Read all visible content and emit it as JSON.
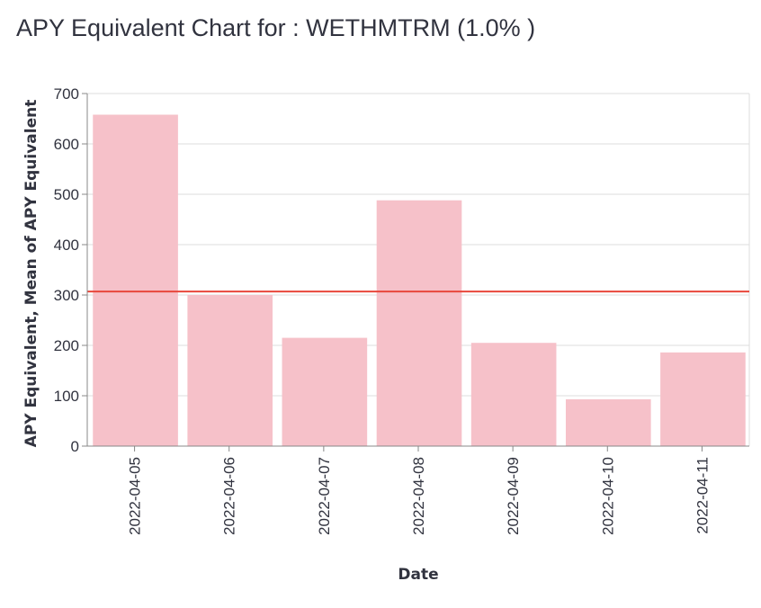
{
  "chart_data": {
    "type": "bar",
    "title": "APY Equivalent Chart for : WETHMTRM (1.0% )",
    "xlabel": "Date",
    "ylabel": "APY Equivalent, Mean of APY Equivalent",
    "categories": [
      "2022-04-05",
      "2022-04-06",
      "2022-04-07",
      "2022-04-08",
      "2022-04-09",
      "2022-04-10",
      "2022-04-11"
    ],
    "values": [
      658,
      300,
      215,
      488,
      205,
      93,
      186
    ],
    "mean_line": 307,
    "ylim": [
      0,
      700
    ],
    "yticks": [
      0,
      100,
      200,
      300,
      400,
      500,
      600,
      700
    ],
    "grid": true,
    "colors": {
      "bar": "#f6c1c9",
      "mean_line": "#e8473b",
      "grid": "#dddddd",
      "axis": "#888888"
    }
  }
}
